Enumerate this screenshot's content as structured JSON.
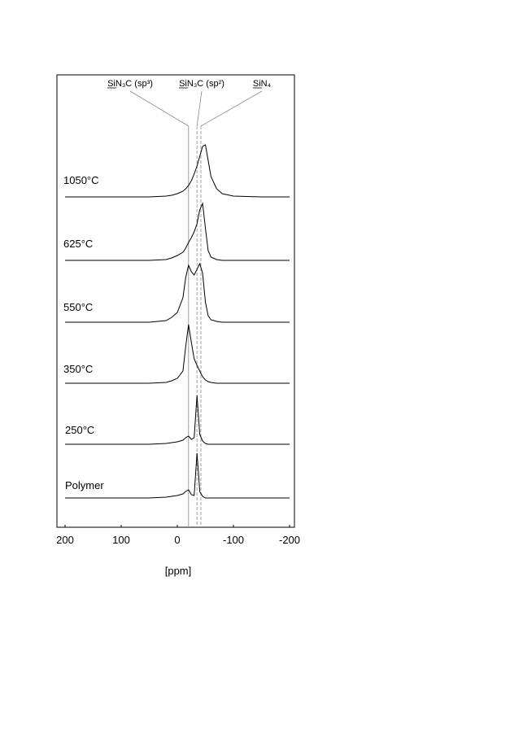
{
  "chart_data": {
    "type": "line",
    "xlabel": "[ppm]",
    "xlim": [
      200,
      -200
    ],
    "xticks": [
      200,
      100,
      0,
      -100,
      -200
    ],
    "x": [
      200,
      150,
      100,
      50,
      20,
      10,
      0,
      -10,
      -15,
      -20,
      -25,
      -30,
      -35,
      -40,
      -45,
      -50,
      -55,
      -60,
      -70,
      -80,
      -100,
      -150,
      -200
    ],
    "series": [
      {
        "name": "1050°C",
        "color": "#000000",
        "values": [
          0,
          0,
          0,
          0,
          1,
          2,
          4,
          7,
          10,
          14,
          20,
          28,
          38,
          50,
          62,
          64,
          45,
          25,
          10,
          4,
          1,
          0,
          0
        ]
      },
      {
        "name": "625°C",
        "color": "#000000",
        "values": [
          0,
          0,
          0,
          0,
          1,
          3,
          6,
          10,
          15,
          22,
          28,
          35,
          45,
          62,
          70,
          40,
          12,
          4,
          1,
          0,
          0,
          0,
          0
        ]
      },
      {
        "name": "550°C",
        "color": "#000000",
        "values": [
          0,
          0,
          0,
          0,
          2,
          6,
          12,
          30,
          55,
          70,
          62,
          58,
          65,
          72,
          60,
          25,
          8,
          3,
          1,
          0,
          0,
          0,
          0
        ]
      },
      {
        "name": "350°C",
        "color": "#000000",
        "values": [
          0,
          0,
          0,
          0,
          1,
          3,
          6,
          15,
          45,
          72,
          50,
          30,
          22,
          15,
          8,
          4,
          2,
          1,
          0,
          0,
          0,
          0,
          0
        ]
      },
      {
        "name": "250°C",
        "color": "#000000",
        "values": [
          0,
          0,
          0,
          0,
          1,
          2,
          3,
          5,
          8,
          10,
          6,
          8,
          60,
          12,
          4,
          1,
          0,
          0,
          0,
          0,
          0,
          0,
          0
        ]
      },
      {
        "name": "Polymer",
        "color": "#000000",
        "values": [
          0,
          0,
          0,
          0,
          1,
          2,
          3,
          5,
          8,
          10,
          4,
          3,
          55,
          8,
          2,
          0,
          0,
          0,
          0,
          0,
          0,
          0,
          0
        ]
      }
    ],
    "annotations": [
      {
        "text": "SiN₃C (sp³)",
        "x": -20
      },
      {
        "text": "SiN₃C (sp²)",
        "x": -35
      },
      {
        "text": "SiN₄",
        "x": -42
      }
    ]
  }
}
